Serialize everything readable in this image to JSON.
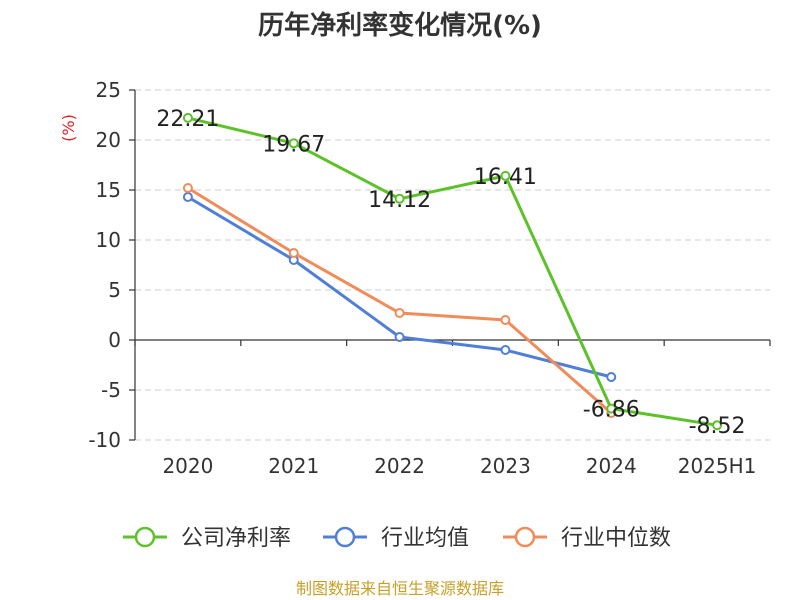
{
  "chart_data": {
    "type": "line",
    "title": "历年净利率变化情况(%)",
    "ylabel": "(%)",
    "xlabel": "",
    "categories": [
      "2020",
      "2021",
      "2022",
      "2023",
      "2024",
      "2025H1"
    ],
    "yticks": [
      25,
      20,
      15,
      10,
      5,
      0,
      -5,
      -10
    ],
    "ylim": [
      -10,
      25
    ],
    "grid": true,
    "legend_position": "bottom",
    "series": [
      {
        "name": "公司净利率",
        "color": "#5cc22a",
        "values": [
          22.21,
          19.67,
          14.12,
          16.41,
          -6.86,
          -8.52
        ],
        "labels": [
          "22.21",
          "19.67",
          "14.12",
          "16.41",
          "-6.86",
          "-8.52"
        ]
      },
      {
        "name": "行业均值",
        "color": "#4f7fd6",
        "values": [
          14.3,
          8.0,
          0.3,
          -1.0,
          -3.7,
          null
        ]
      },
      {
        "name": "行业中位数",
        "color": "#f08c5a",
        "values": [
          15.2,
          8.7,
          2.7,
          2.0,
          -7.3,
          null
        ]
      }
    ]
  },
  "source": "制图数据来自恒生聚源数据库"
}
